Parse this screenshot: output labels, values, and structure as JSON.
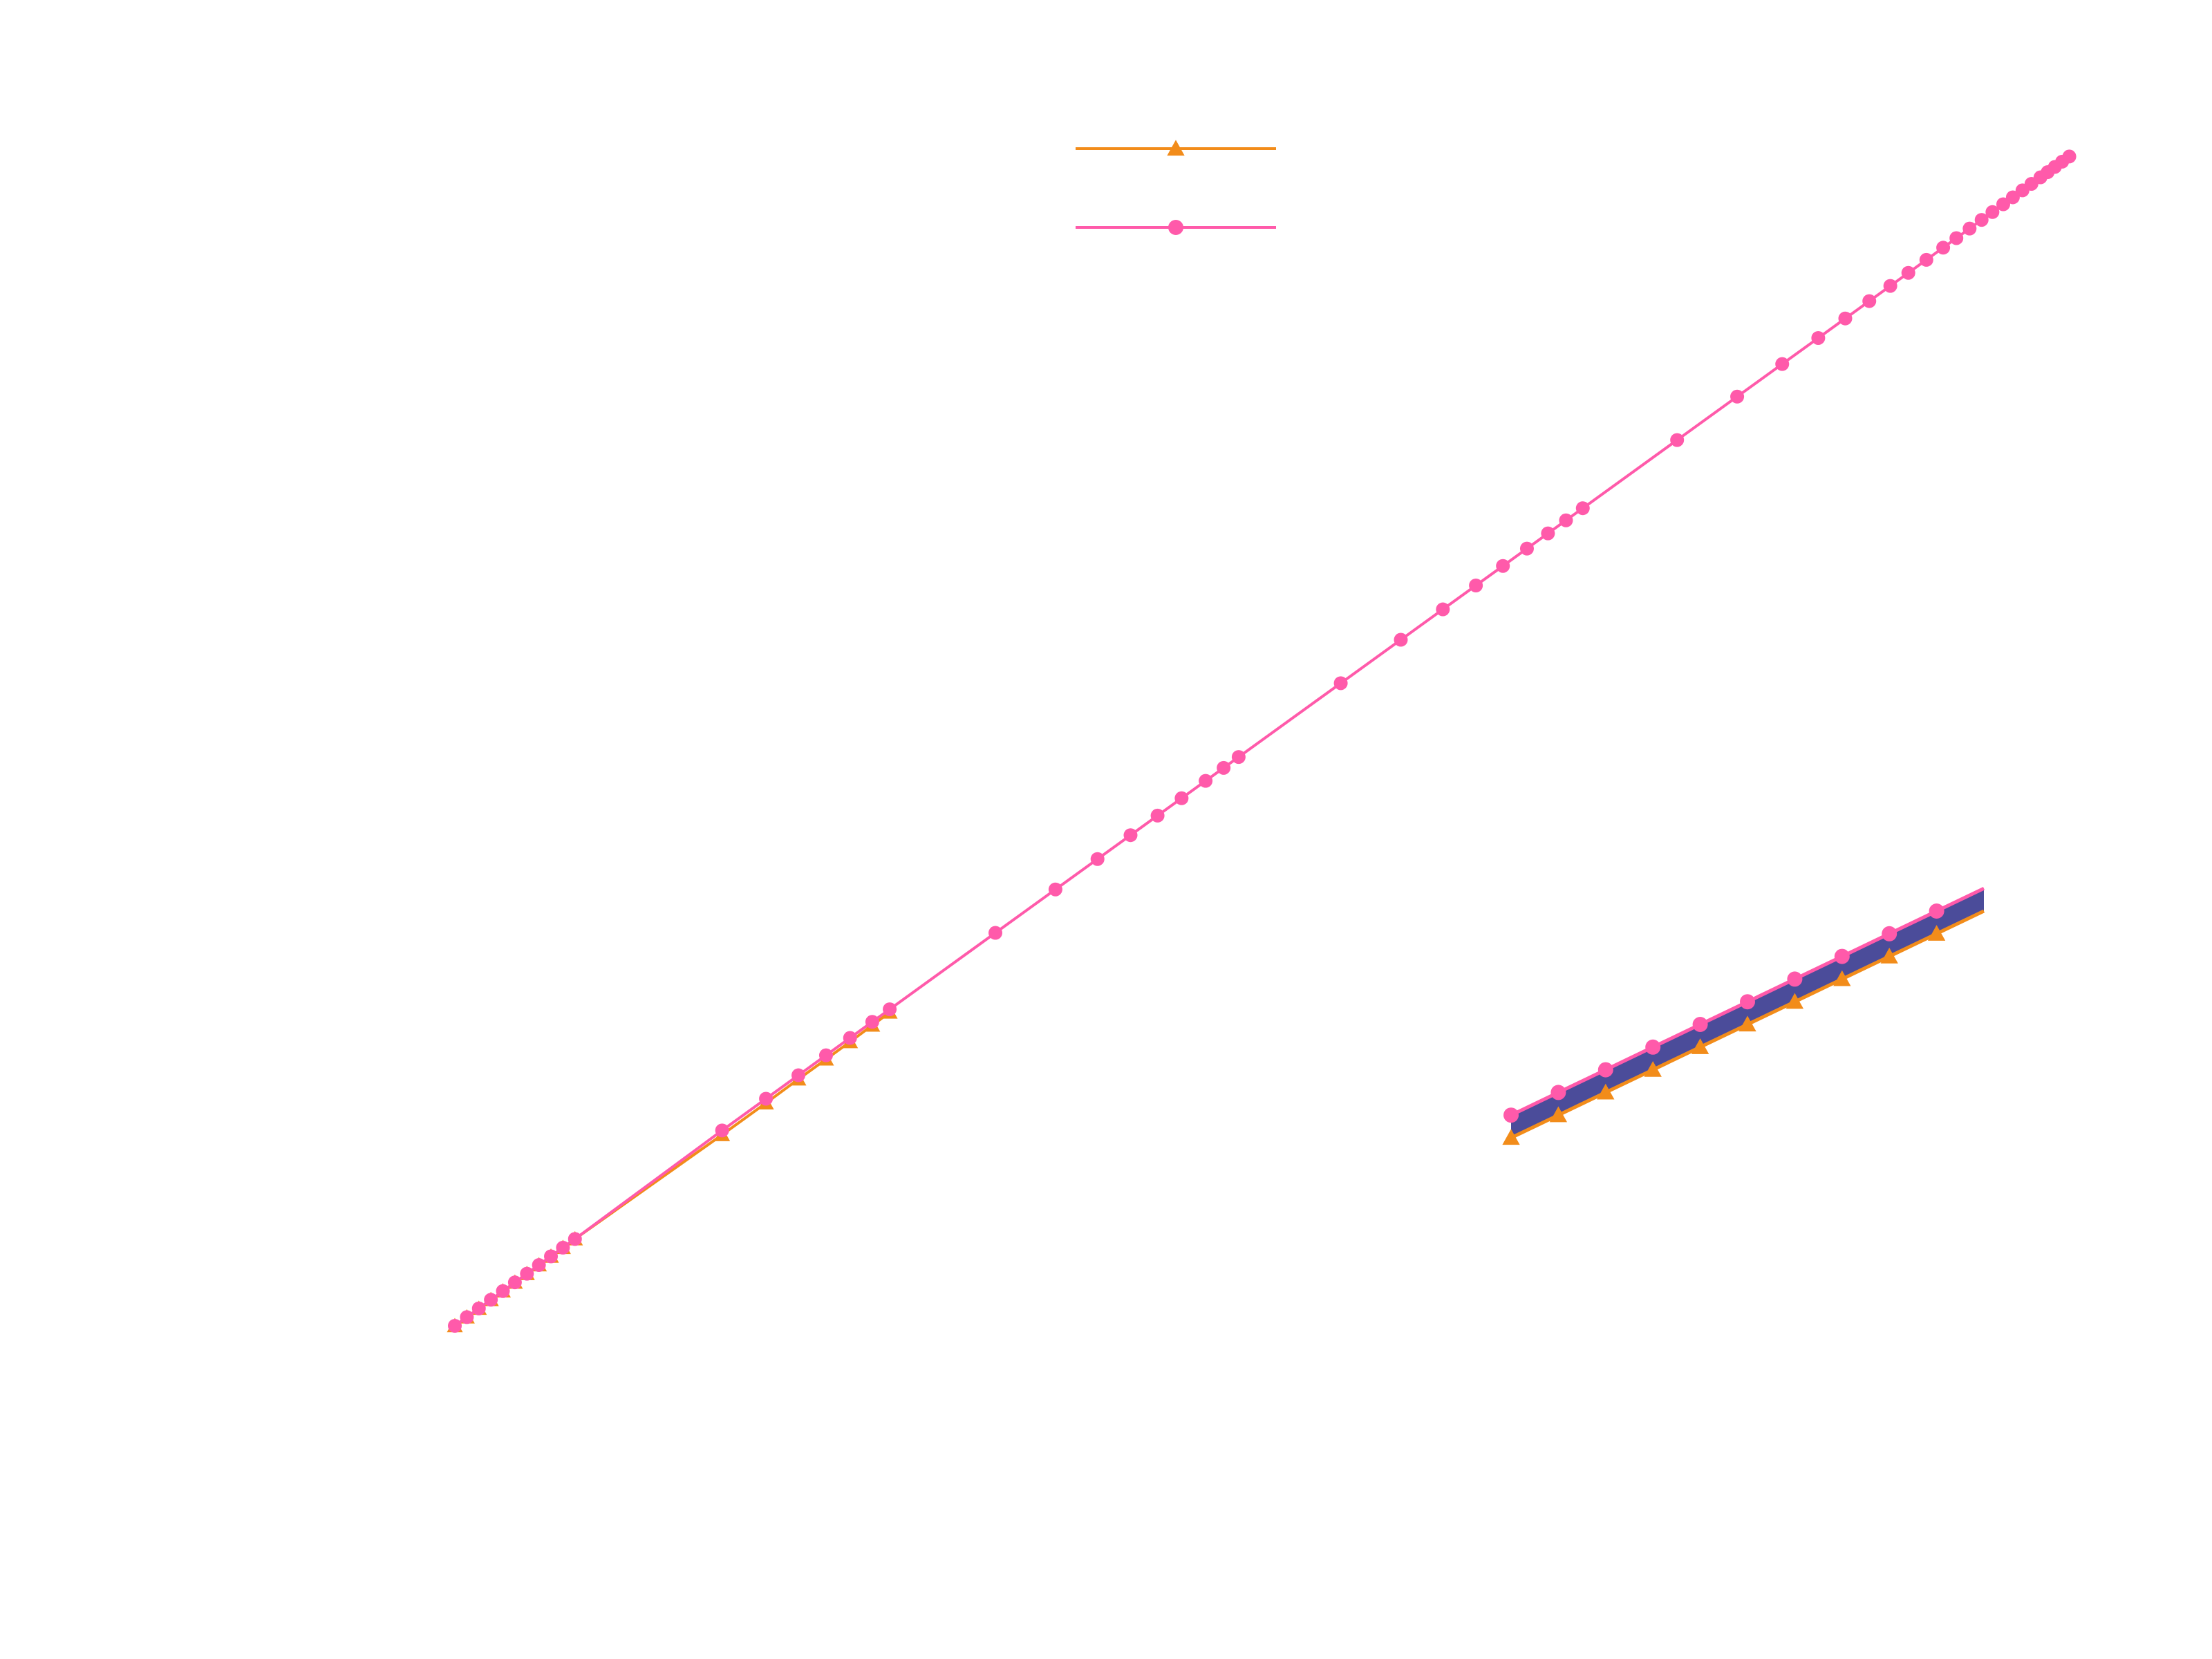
{
  "chart_data": [
    {
      "type": "line",
      "grid": false,
      "legend_position": "top-center",
      "series": [
        {
          "marker": "triangle",
          "color": "#F28C1A",
          "x": [
            1.0,
            1.2,
            1.4,
            1.6,
            1.8,
            2.0,
            2.2,
            2.4,
            2.6,
            2.8,
            3.0,
            5.45,
            6.18,
            6.72,
            7.18,
            7.58,
            7.95,
            8.24
          ],
          "y": [
            1.0,
            1.2,
            1.4,
            1.6,
            1.8,
            2.0,
            2.2,
            2.4,
            2.6,
            2.8,
            3.0,
            5.4,
            6.13,
            6.68,
            7.14,
            7.54,
            7.92,
            8.22
          ]
        },
        {
          "marker": "circle",
          "color": "#FF5AAA",
          "x": [
            1.0,
            1.2,
            1.4,
            1.6,
            1.8,
            2.0,
            2.2,
            2.4,
            2.6,
            2.8,
            3.0,
            5.45,
            6.18,
            6.72,
            7.18,
            7.58,
            7.95,
            8.24,
            10.0,
            11.0,
            11.7,
            12.25,
            12.7,
            13.1,
            13.5,
            13.8,
            14.05,
            15.75,
            16.75,
            17.45,
            18.0,
            18.45,
            18.85,
            19.2,
            19.5,
            19.78,
            21.35,
            22.35,
            23.1,
            23.7,
            24.15,
            24.55,
            24.9,
            25.2,
            25.5,
            25.78,
            26.0,
            26.22,
            26.42,
            26.6,
            26.78,
            26.94,
            27.1,
            27.25,
            27.4,
            27.52,
            27.64,
            27.76,
            27.88
          ],
          "y": [
            1.0,
            1.2,
            1.4,
            1.6,
            1.8,
            2.0,
            2.2,
            2.4,
            2.6,
            2.8,
            3.0,
            5.5,
            6.23,
            6.77,
            7.23,
            7.63,
            8.0,
            8.29,
            10.05,
            11.05,
            11.75,
            12.3,
            12.75,
            13.15,
            13.55,
            13.85,
            14.1,
            15.8,
            16.8,
            17.5,
            18.05,
            18.5,
            18.9,
            19.25,
            19.55,
            19.83,
            21.4,
            22.4,
            23.15,
            23.75,
            24.2,
            24.6,
            24.95,
            25.25,
            25.55,
            25.83,
            26.05,
            26.27,
            26.47,
            26.65,
            26.83,
            26.99,
            27.15,
            27.3,
            27.45,
            27.57,
            27.69,
            27.81,
            27.93
          ]
        }
      ]
    },
    {
      "type": "line",
      "band_color": "#4B4C9A",
      "series": [
        {
          "marker": "triangle",
          "color": "#F28C1A",
          "x": [
            1,
            2,
            3,
            4,
            5,
            6,
            7,
            8,
            9,
            10
          ],
          "y": [
            0.0,
            0.45,
            0.9,
            1.35,
            1.8,
            2.25,
            2.7,
            3.15,
            3.6,
            4.05
          ]
        },
        {
          "marker": "circle",
          "color": "#FF5AAA",
          "x": [
            1,
            2,
            3,
            4,
            5,
            6,
            7,
            8,
            9,
            10
          ],
          "y": [
            0.45,
            0.9,
            1.35,
            1.8,
            2.25,
            2.7,
            3.15,
            3.6,
            4.05,
            4.5
          ]
        }
      ]
    }
  ]
}
